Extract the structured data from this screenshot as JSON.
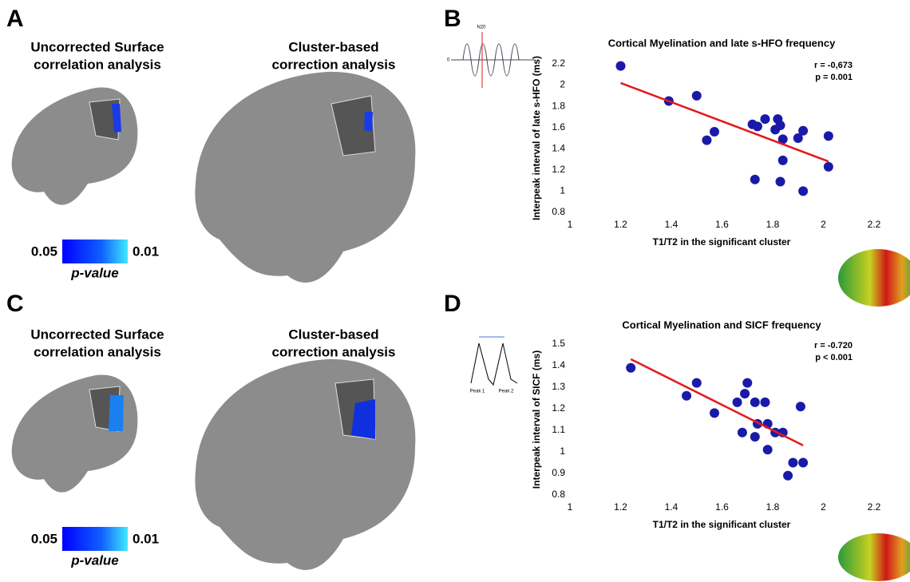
{
  "panels": {
    "labels": [
      "A",
      "B",
      "C",
      "D"
    ]
  },
  "brain_panels": [
    {
      "left_title": [
        "Uncorrected Surface",
        "correlation analysis"
      ],
      "right_title": [
        "Cluster-based",
        "correction analysis"
      ],
      "colorbar": {
        "min_label": "0.05",
        "max_label": "0.01",
        "label": "p-value"
      }
    },
    {
      "left_title": [
        "Uncorrected Surface",
        "correlation analysis"
      ],
      "right_title": [
        "Cluster-based",
        "correction analysis"
      ],
      "colorbar": {
        "min_label": "0.05",
        "max_label": "0.01",
        "label": "p-value"
      }
    }
  ],
  "insets": [
    {
      "labels": [
        "N20",
        "0"
      ]
    },
    {
      "labels": [
        "Peak 1",
        "Peak 2"
      ]
    }
  ],
  "chart_data": [
    {
      "type": "scatter",
      "title": "Cortical Myelination and late s-HFO frequency",
      "x_label": "T1/T2 in the significant cluster",
      "y_label": "Interpeak interval of late s-HFO (ms)",
      "annotations": [
        "r = -0,673",
        "p = 0.001"
      ],
      "color": "#1a1aa8",
      "x": [
        1.2,
        1.39,
        1.5,
        1.57,
        1.54,
        1.72,
        1.74,
        1.77,
        1.82,
        1.83,
        1.81,
        1.84,
        1.9,
        1.92,
        2.02,
        2.02,
        1.84,
        1.73,
        1.83,
        1.92
      ],
      "values": [
        2.18,
        1.85,
        1.9,
        1.56,
        1.48,
        1.63,
        1.61,
        1.68,
        1.68,
        1.62,
        1.58,
        1.49,
        1.5,
        1.57,
        1.52,
        1.23,
        1.29,
        1.11,
        1.09,
        1.0
      ],
      "trendline": {
        "color": "#e41a1c",
        "x": [
          1.2,
          2.02
        ],
        "y": [
          2.02,
          1.28
        ]
      },
      "xlim": [
        1,
        2.2
      ],
      "xticks": [
        1,
        1.2,
        1.4,
        1.6,
        1.8,
        2,
        2.2
      ],
      "ylim": [
        0.8,
        2.2
      ],
      "yticks": [
        0.8,
        1,
        1.2,
        1.4,
        1.6,
        1.8,
        2,
        2.2
      ]
    },
    {
      "type": "scatter",
      "title": "Cortical Myelination and SICF frequency",
      "x_label": "T1/T2 in the significant cluster",
      "y_label": "Interpeak interval of SICF (ms)",
      "annotations": [
        "r = -0.720",
        "p < 0.001"
      ],
      "color": "#1a1aa8",
      "x": [
        1.24,
        1.46,
        1.5,
        1.57,
        1.66,
        1.7,
        1.69,
        1.73,
        1.77,
        1.68,
        1.74,
        1.73,
        1.78,
        1.78,
        1.81,
        1.84,
        1.91,
        1.88,
        1.86,
        1.92
      ],
      "values": [
        1.39,
        1.26,
        1.32,
        1.18,
        1.23,
        1.32,
        1.27,
        1.23,
        1.23,
        1.09,
        1.13,
        1.07,
        1.13,
        1.01,
        1.09,
        1.09,
        1.21,
        0.95,
        0.89,
        0.95
      ],
      "trendline": {
        "color": "#e41a1c",
        "x": [
          1.24,
          1.92
        ],
        "y": [
          1.43,
          1.03
        ]
      },
      "xlim": [
        1,
        2.2
      ],
      "xticks": [
        1,
        1.2,
        1.4,
        1.6,
        1.8,
        2,
        2.2
      ],
      "ylim": [
        0.8,
        1.5
      ],
      "yticks": [
        0.8,
        0.9,
        1,
        1.1,
        1.2,
        1.3,
        1.4,
        1.5
      ]
    }
  ]
}
